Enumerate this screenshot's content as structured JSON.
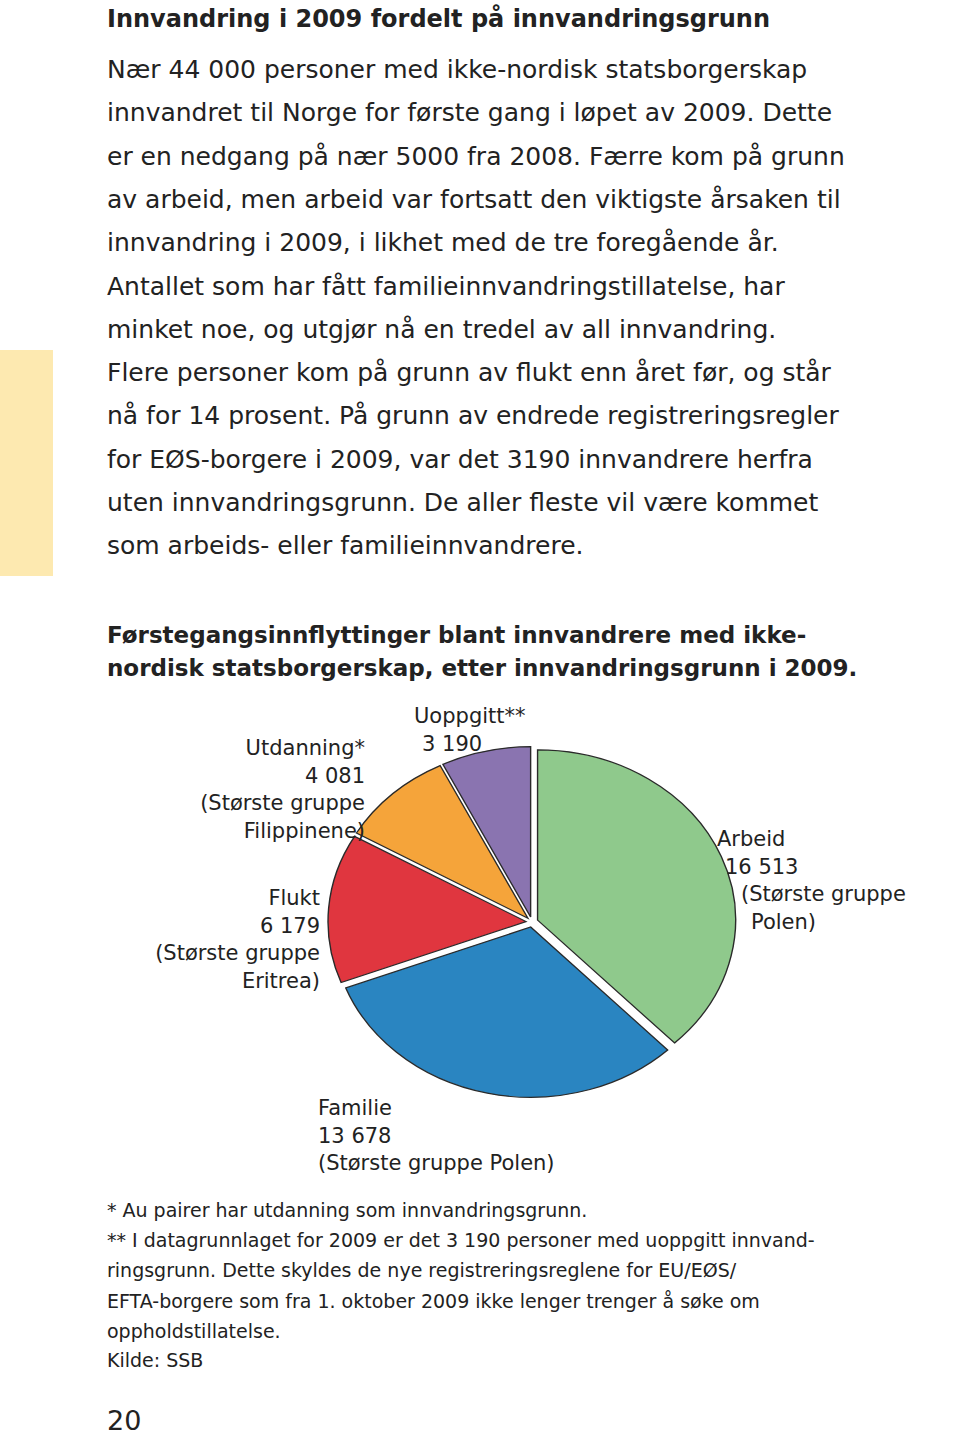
{
  "document": {
    "heading": "Innvandring i 2009 fordelt på innvandringsgrunn",
    "paragraph": [
      "Nær 44 000 personer med ikke-nordisk statsborgerskap",
      "innvandret til Norge for første gang i løpet av 2009. Dette",
      "er en nedgang på nær 5000 fra 2008. Færre kom på grunn",
      "av arbeid, men arbeid var fortsatt den viktigste årsaken til",
      "innvandring i 2009, i likhet med de tre foregående år.",
      "Antallet som har fått familieinnvandringstillatelse, har",
      "minket noe, og utgjør nå en tredel av all innvandring.",
      "Flere personer kom på grunn av flukt enn året før, og står",
      "nå for 14 prosent. På grunn av endrede registreringsregler",
      "for EØS-borgere i 2009, var det 3190 innvandrere herfra",
      "uten innvandringsgrunn. De aller fleste vil være kommet",
      "som arbeids- eller familieinnvandrere."
    ],
    "footnotes": [
      "* Au pairer har utdanning som innvandringsgrunn.",
      "** I datagrunnlaget for 2009 er det 3 190 personer med uoppgitt innvand-",
      "ringsgrunn. Dette skyldes de nye registreringsreglene for EU/EØS/",
      "EFTA-borgere som fra 1. oktober 2009 ikke lenger trenger å søke om",
      "oppholdstillatelse."
    ],
    "source": "Kilde: SSB",
    "page_number": "20"
  },
  "chart_data": {
    "type": "pie",
    "title": [
      "Førstegangsinnflyttinger blant innvandrere med ikke-",
      "nordisk statsborgerskap, etter innvandringsgrunn i 2009."
    ],
    "categories": [
      "Arbeid",
      "Familie",
      "Flukt",
      "Utdanning*",
      "Uoppgitt**"
    ],
    "values": [
      16513,
      13678,
      6179,
      4081,
      3190
    ],
    "value_labels": [
      "16 513",
      "13 678",
      "6 179",
      "4 081",
      "3 190"
    ],
    "annotations": [
      [
        "(Største gruppe",
        "Polen)"
      ],
      [
        "(Største gruppe Polen)"
      ],
      [
        "(Største gruppe",
        "Eritrea)"
      ],
      [
        "(Største gruppe",
        "Filippinene)"
      ],
      null
    ],
    "colors": [
      "#8fc98c",
      "#2a85c1",
      "#e0363f",
      "#f5a43a",
      "#8a74b0"
    ],
    "data_labels": true
  }
}
